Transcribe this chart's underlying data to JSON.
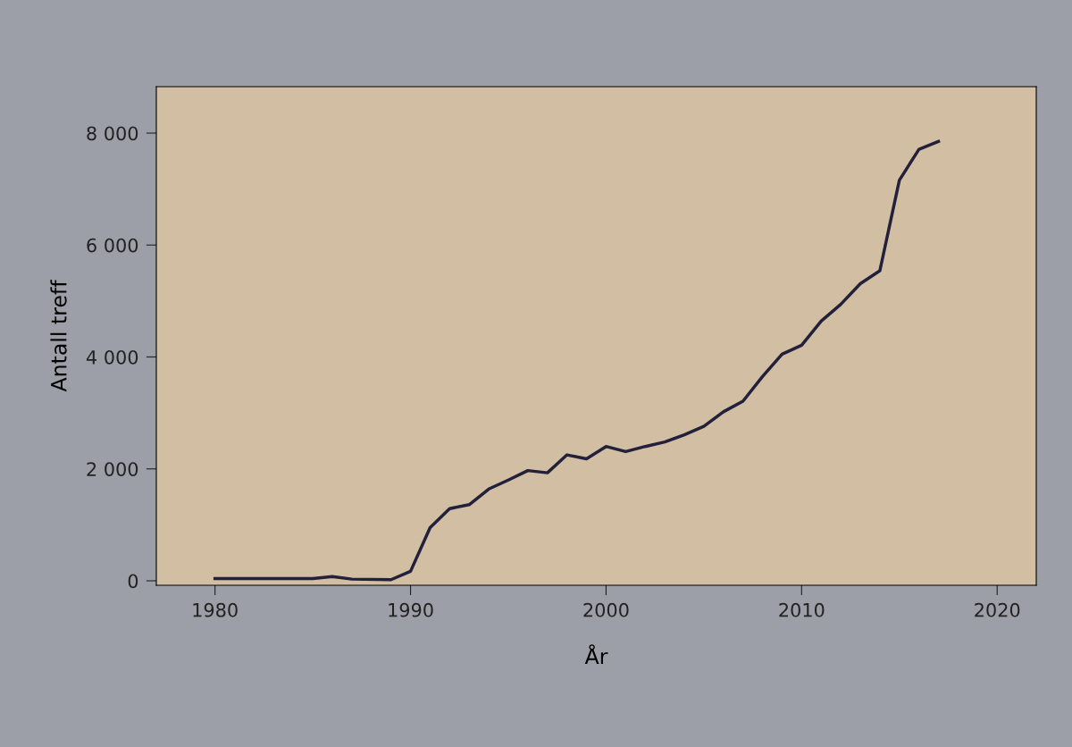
{
  "chart_data": {
    "type": "line",
    "xlabel": "År",
    "ylabel": "Antall treff",
    "x": [
      1980,
      1985,
      1986,
      1987,
      1989,
      1990,
      1991,
      1992,
      1993,
      1994,
      1995,
      1996,
      1997,
      1998,
      1999,
      2000,
      2001,
      2002,
      2003,
      2004,
      2005,
      2006,
      2007,
      2008,
      2009,
      2010,
      2011,
      2012,
      2013,
      2014,
      2015,
      2016,
      2017
    ],
    "series": [
      {
        "color": "#22203a",
        "values": [
          40,
          40,
          75,
          30,
          20,
          170,
          950,
          1290,
          1360,
          1640,
          1800,
          1970,
          1930,
          2250,
          2180,
          2400,
          2310,
          2400,
          2480,
          2610,
          2760,
          3020,
          3210,
          3650,
          4050,
          4210,
          4640,
          4940,
          5310,
          5540,
          7160,
          7710,
          7850
        ]
      }
    ],
    "xlim": [
      1977,
      2022
    ],
    "xticks": [
      1980,
      1990,
      2000,
      2010,
      2020
    ],
    "ylim": [
      -80,
      8830
    ],
    "yticks": [
      0,
      {
        "value": 2000,
        "label": "2 000"
      },
      {
        "value": 4000,
        "label": "4 000"
      },
      {
        "value": 6000,
        "label": "6 000"
      },
      {
        "value": 8000,
        "label": "8 000"
      }
    ],
    "grid": false,
    "legend": false,
    "marker": "none",
    "line_style": "solid"
  }
}
